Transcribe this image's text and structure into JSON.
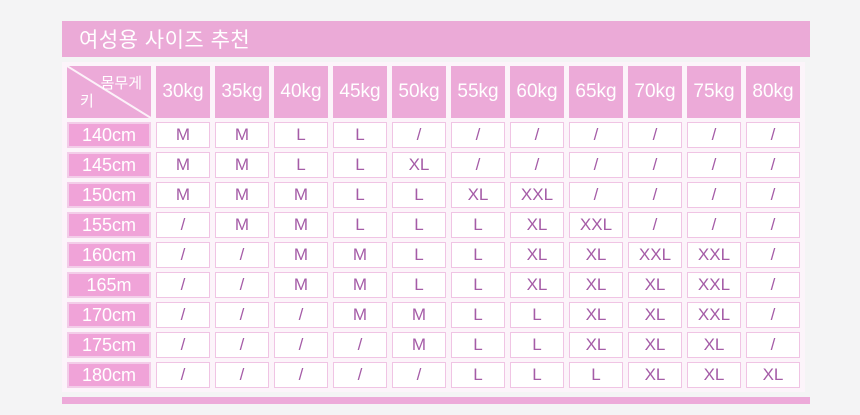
{
  "title": "여성용 사이즈 추천",
  "colors": {
    "header_pink": "#ecaad8",
    "title_bar_pink": "#ebaad7",
    "height_label_pink": "#f0a3d8",
    "value_text_purple": "#a55ca7",
    "cell_border_pink": "#f0c4e4",
    "accent_bar_pink": "#edaad9",
    "page_background": "#f4f4f5",
    "text_white": "#ffffff"
  },
  "chart_data": {
    "type": "table",
    "title": "여성용 사이즈 추천",
    "corner": {
      "top_right_label": "몸무게",
      "bottom_left_label": "키"
    },
    "columns": [
      "30kg",
      "35kg",
      "40kg",
      "45kg",
      "50kg",
      "55kg",
      "60kg",
      "65kg",
      "70kg",
      "75kg",
      "80kg"
    ],
    "rows": [
      {
        "height": "140cm",
        "sizes": [
          "M",
          "M",
          "L",
          "L",
          "/",
          "/",
          "/",
          "/",
          "/",
          "/",
          "/"
        ]
      },
      {
        "height": "145cm",
        "sizes": [
          "M",
          "M",
          "L",
          "L",
          "XL",
          "/",
          "/",
          "/",
          "/",
          "/",
          "/"
        ]
      },
      {
        "height": "150cm",
        "sizes": [
          "M",
          "M",
          "M",
          "L",
          "L",
          "XL",
          "XXL",
          "/",
          "/",
          "/",
          "/"
        ]
      },
      {
        "height": "155cm",
        "sizes": [
          "/",
          "M",
          "M",
          "L",
          "L",
          "L",
          "XL",
          "XXL",
          "/",
          "/",
          "/"
        ]
      },
      {
        "height": "160cm",
        "sizes": [
          "/",
          "/",
          "M",
          "M",
          "L",
          "L",
          "XL",
          "XL",
          "XXL",
          "XXL",
          "/"
        ]
      },
      {
        "height": "165m",
        "sizes": [
          "/",
          "/",
          "M",
          "M",
          "L",
          "L",
          "XL",
          "XL",
          "XL",
          "XXL",
          "/"
        ]
      },
      {
        "height": "170cm",
        "sizes": [
          "/",
          "/",
          "/",
          "M",
          "M",
          "L",
          "L",
          "XL",
          "XL",
          "XXL",
          "/"
        ]
      },
      {
        "height": "175cm",
        "sizes": [
          "/",
          "/",
          "/",
          "/",
          "M",
          "L",
          "L",
          "XL",
          "XL",
          "XL",
          "/"
        ]
      },
      {
        "height": "180cm",
        "sizes": [
          "/",
          "/",
          "/",
          "/",
          "/",
          "L",
          "L",
          "L",
          "XL",
          "XL",
          "XL"
        ]
      }
    ]
  }
}
